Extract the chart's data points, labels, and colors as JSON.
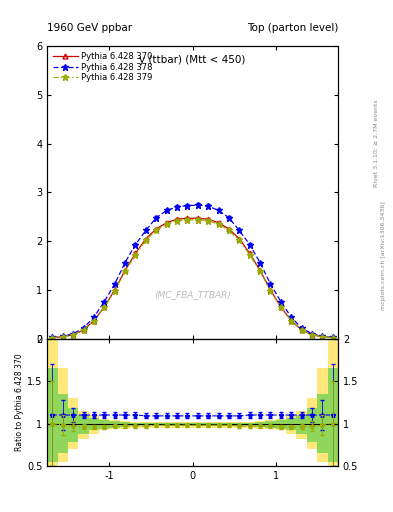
{
  "title_left": "1960 GeV ppbar",
  "title_right": "Top (parton level)",
  "plot_title": "y (ttbar) (Mtt < 450)",
  "watermark": "(MC_FBA_TTBAR)",
  "rivet_label": "Rivet 3.1.10; ≥ 2.7M events",
  "arxiv_label": "mcplots.cern.ch [arXiv:1306.3436]",
  "ylabel_ratio": "Ratio to Pythia 6.428 370",
  "ylim_main": [
    0,
    6
  ],
  "ylim_ratio": [
    0.5,
    2.0
  ],
  "xlim": [
    -1.75,
    1.75
  ],
  "legend_entries": [
    "Pythia 6.428 370",
    "Pythia 6.428 378",
    "Pythia 6.428 379"
  ],
  "x_bins": [
    -1.75,
    -1.625,
    -1.5,
    -1.375,
    -1.25,
    -1.125,
    -1.0,
    -0.875,
    -0.75,
    -0.625,
    -0.5,
    -0.375,
    -0.25,
    -0.125,
    0.0,
    0.125,
    0.25,
    0.375,
    0.5,
    0.625,
    0.75,
    0.875,
    1.0,
    1.125,
    1.25,
    1.375,
    1.5,
    1.625,
    1.75
  ],
  "y_370": [
    0.02,
    0.04,
    0.08,
    0.18,
    0.37,
    0.65,
    1.0,
    1.4,
    1.75,
    2.05,
    2.25,
    2.38,
    2.45,
    2.47,
    2.47,
    2.45,
    2.38,
    2.25,
    2.05,
    1.75,
    1.4,
    1.0,
    0.65,
    0.37,
    0.18,
    0.08,
    0.04,
    0.02
  ],
  "y_378": [
    0.025,
    0.05,
    0.1,
    0.22,
    0.44,
    0.76,
    1.12,
    1.56,
    1.93,
    2.22,
    2.48,
    2.63,
    2.7,
    2.73,
    2.74,
    2.72,
    2.63,
    2.48,
    2.22,
    1.93,
    1.56,
    1.12,
    0.76,
    0.44,
    0.22,
    0.1,
    0.05,
    0.025
  ],
  "y_379": [
    0.02,
    0.04,
    0.08,
    0.18,
    0.37,
    0.64,
    0.98,
    1.38,
    1.72,
    2.02,
    2.22,
    2.35,
    2.42,
    2.44,
    2.44,
    2.42,
    2.35,
    2.22,
    2.02,
    1.72,
    1.38,
    0.98,
    0.64,
    0.37,
    0.18,
    0.08,
    0.04,
    0.02
  ],
  "ratio_378": [
    1.1,
    1.1,
    1.1,
    1.1,
    1.1,
    1.1,
    1.1,
    1.1,
    1.1,
    1.09,
    1.09,
    1.09,
    1.09,
    1.09,
    1.09,
    1.09,
    1.09,
    1.09,
    1.09,
    1.1,
    1.1,
    1.1,
    1.1,
    1.1,
    1.1,
    1.1,
    1.1,
    1.1
  ],
  "ratio_379": [
    1.0,
    0.98,
    0.97,
    0.96,
    0.96,
    0.96,
    0.97,
    0.97,
    0.97,
    0.97,
    0.98,
    0.98,
    0.98,
    0.98,
    0.98,
    0.98,
    0.98,
    0.98,
    0.97,
    0.97,
    0.97,
    0.97,
    0.96,
    0.96,
    0.96,
    0.97,
    0.98,
    1.0
  ],
  "err_378_ratio": [
    0.6,
    0.18,
    0.08,
    0.04,
    0.03,
    0.03,
    0.03,
    0.03,
    0.03,
    0.03,
    0.03,
    0.03,
    0.03,
    0.03,
    0.03,
    0.03,
    0.03,
    0.03,
    0.03,
    0.03,
    0.03,
    0.03,
    0.03,
    0.03,
    0.04,
    0.08,
    0.18,
    0.6
  ],
  "err_379_ratio": [
    0.5,
    0.12,
    0.06,
    0.03,
    0.02,
    0.02,
    0.02,
    0.02,
    0.02,
    0.02,
    0.02,
    0.02,
    0.02,
    0.02,
    0.02,
    0.02,
    0.02,
    0.02,
    0.02,
    0.02,
    0.02,
    0.02,
    0.02,
    0.02,
    0.03,
    0.06,
    0.12,
    0.5
  ],
  "band_yellow_up": [
    2.0,
    1.65,
    1.3,
    1.15,
    1.1,
    1.05,
    1.04,
    1.03,
    1.02,
    1.02,
    1.02,
    1.02,
    1.02,
    1.02,
    1.02,
    1.02,
    1.02,
    1.02,
    1.02,
    1.02,
    1.03,
    1.04,
    1.05,
    1.1,
    1.15,
    1.3,
    1.65,
    2.0
  ],
  "band_yellow_dn": [
    0.5,
    0.55,
    0.7,
    0.82,
    0.88,
    0.92,
    0.93,
    0.94,
    0.95,
    0.95,
    0.95,
    0.95,
    0.95,
    0.95,
    0.95,
    0.95,
    0.95,
    0.95,
    0.95,
    0.95,
    0.94,
    0.93,
    0.92,
    0.88,
    0.82,
    0.7,
    0.55,
    0.5
  ],
  "band_green_up": [
    1.65,
    1.35,
    1.18,
    1.1,
    1.06,
    1.04,
    1.03,
    1.02,
    1.01,
    1.01,
    1.01,
    1.01,
    1.01,
    1.01,
    1.01,
    1.01,
    1.01,
    1.01,
    1.01,
    1.01,
    1.02,
    1.03,
    1.04,
    1.06,
    1.1,
    1.18,
    1.35,
    1.65
  ],
  "band_green_dn": [
    0.55,
    0.65,
    0.78,
    0.88,
    0.92,
    0.94,
    0.95,
    0.96,
    0.97,
    0.97,
    0.97,
    0.97,
    0.97,
    0.97,
    0.97,
    0.97,
    0.97,
    0.97,
    0.97,
    0.97,
    0.96,
    0.95,
    0.94,
    0.92,
    0.88,
    0.78,
    0.65,
    0.55
  ],
  "color_370": "#cc0000",
  "color_378": "#0000ee",
  "color_379": "#99aa00",
  "bg_color": "#ffffff",
  "ratio_band_green": "#44cc44",
  "ratio_band_yellow": "#ffdd44"
}
